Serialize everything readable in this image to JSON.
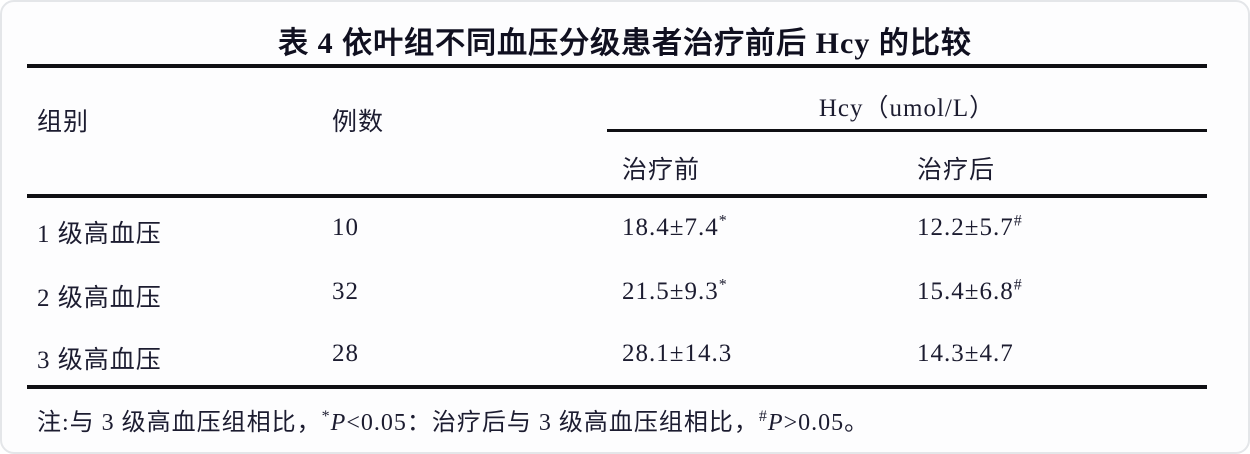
{
  "title": "表 4  依叶组不同血压分级患者治疗前后 Hcy 的比较",
  "table": {
    "columns": {
      "group": "组别",
      "n": "例数",
      "hcy_span": "Hcy（umol/L）",
      "before": "治疗前",
      "after": "治疗后"
    },
    "rows": [
      {
        "group": "1 级高血压",
        "n": "10",
        "before": "18.4±7.4",
        "before_sup": "*",
        "after": "12.2±5.7",
        "after_sup": "#"
      },
      {
        "group": "2 级高血压",
        "n": "32",
        "before": "21.5±9.3",
        "before_sup": "*",
        "after": "15.4±6.8",
        "after_sup": "#"
      },
      {
        "group": "3 级高血压",
        "n": "28",
        "before": "28.1±14.3",
        "before_sup": "",
        "after": "14.3±4.7",
        "after_sup": ""
      }
    ]
  },
  "footnote": {
    "prefix": "注:与 3 级高血压组相比，",
    "sup1": "*",
    "p1": "P",
    "mid": "<0.05：治疗后与 3 级高血压组相比，",
    "sup2": "#",
    "p2": "P",
    "end": ">0.05。"
  },
  "colors": {
    "text": "#1c1c30",
    "rule": "#101014",
    "background": "#fdfdfe"
  }
}
